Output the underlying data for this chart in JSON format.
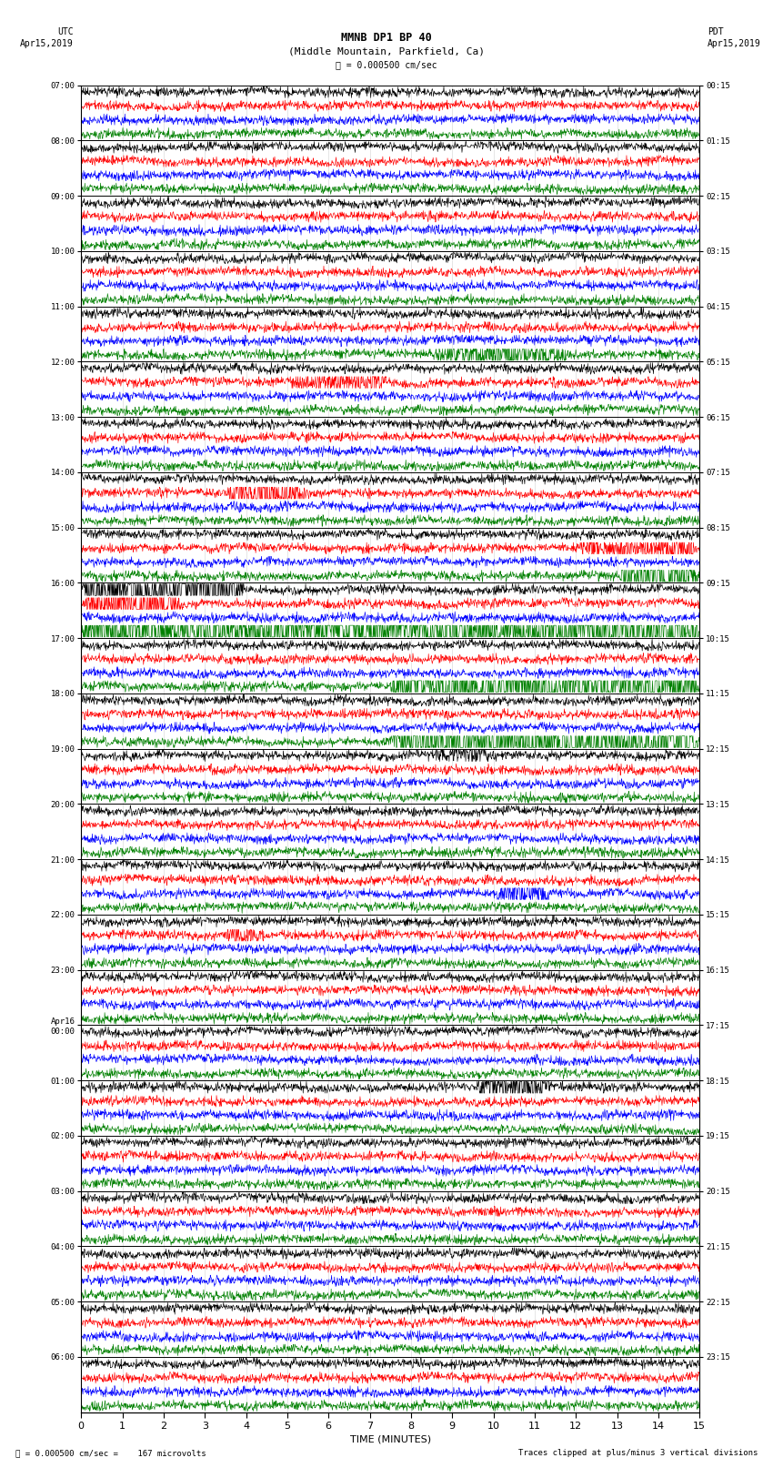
{
  "title_line1": "MMNB DP1 BP 40",
  "title_line2": "(Middle Mountain, Parkfield, Ca)",
  "scale_label": "= 0.000500 cm/sec",
  "footer_left": "= 0.000500 cm/sec =    167 microvolts",
  "footer_right": "Traces clipped at plus/minus 3 vertical divisions",
  "label_utc_line1": "UTC",
  "label_utc_line2": "Apr15,2019",
  "label_pdt_line1": "PDT",
  "label_pdt_line2": "Apr15,2019",
  "xlabel": "TIME (MINUTES)",
  "x_ticks": [
    0,
    1,
    2,
    3,
    4,
    5,
    6,
    7,
    8,
    9,
    10,
    11,
    12,
    13,
    14,
    15
  ],
  "x_lim": [
    0,
    15
  ],
  "colors": [
    "black",
    "red",
    "blue",
    "green"
  ],
  "num_hours": 24,
  "traces_per_hour": 4,
  "background_color": "white",
  "left_labels": [
    "07:00",
    "08:00",
    "09:00",
    "10:00",
    "11:00",
    "12:00",
    "13:00",
    "14:00",
    "15:00",
    "16:00",
    "17:00",
    "18:00",
    "19:00",
    "20:00",
    "21:00",
    "22:00",
    "23:00",
    "Apr16\n00:00",
    "01:00",
    "02:00",
    "03:00",
    "04:00",
    "05:00",
    "06:00"
  ],
  "right_labels": [
    "00:15",
    "01:15",
    "02:15",
    "03:15",
    "04:15",
    "05:15",
    "06:15",
    "07:15",
    "08:15",
    "09:15",
    "10:15",
    "11:15",
    "12:15",
    "13:15",
    "14:15",
    "15:15",
    "16:15",
    "17:15",
    "18:15",
    "19:15",
    "20:15",
    "21:15",
    "22:15",
    "23:15"
  ]
}
